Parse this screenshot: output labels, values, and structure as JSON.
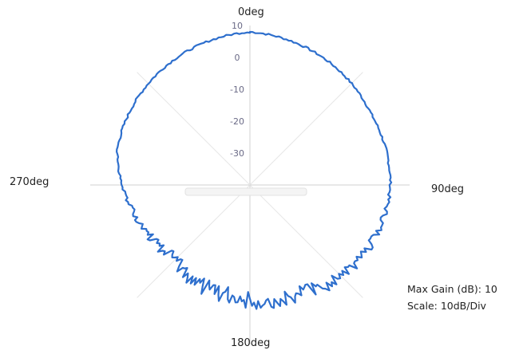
{
  "chart_data": {
    "type": "line",
    "subtype": "polar",
    "title": "",
    "angle_labels": [
      "0deg",
      "90deg",
      "180deg",
      "270deg"
    ],
    "radial_ticks": [
      "10",
      "0",
      "-10",
      "-20",
      "-30"
    ],
    "radial_range_db": [
      -40,
      10
    ],
    "grid": true,
    "notes": {
      "max_gain": "Max Gain (dB): 10",
      "scale": "Scale: 10dB/Div"
    },
    "series": [
      {
        "color": "#2e6fcd",
        "points": [
          {
            "angle_deg": 0,
            "gain_db": 8
          },
          {
            "angle_deg": 15,
            "gain_db": 7
          },
          {
            "angle_deg": 30,
            "gain_db": 6
          },
          {
            "angle_deg": 45,
            "gain_db": 5
          },
          {
            "angle_deg": 60,
            "gain_db": 4
          },
          {
            "angle_deg": 75,
            "gain_db": 4
          },
          {
            "angle_deg": 90,
            "gain_db": 4
          },
          {
            "angle_deg": 105,
            "gain_db": 3
          },
          {
            "angle_deg": 120,
            "gain_db": 2
          },
          {
            "angle_deg": 135,
            "gain_db": 1
          },
          {
            "angle_deg": 150,
            "gain_db": -2
          },
          {
            "angle_deg": 165,
            "gain_db": -3
          },
          {
            "angle_deg": 180,
            "gain_db": -4
          },
          {
            "angle_deg": 195,
            "gain_db": -5
          },
          {
            "angle_deg": 210,
            "gain_db": -5
          },
          {
            "angle_deg": 225,
            "gain_db": -7
          },
          {
            "angle_deg": 240,
            "gain_db": -5
          },
          {
            "angle_deg": 255,
            "gain_db": -3
          },
          {
            "angle_deg": 270,
            "gain_db": 0
          },
          {
            "angle_deg": 285,
            "gain_db": 3
          },
          {
            "angle_deg": 300,
            "gain_db": 4
          },
          {
            "angle_deg": 315,
            "gain_db": 5
          },
          {
            "angle_deg": 330,
            "gain_db": 6
          },
          {
            "angle_deg": 345,
            "gain_db": 7
          }
        ]
      }
    ]
  }
}
